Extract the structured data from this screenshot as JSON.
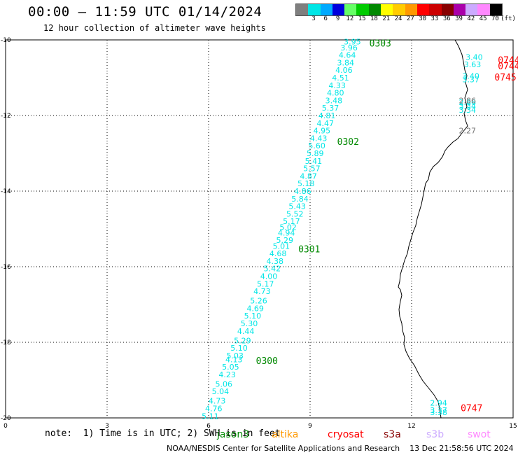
{
  "header": {
    "title": "00:00 – 11:59 UTC 01/14/2024",
    "subtitle": "12 hour collection of altimeter wave heights"
  },
  "legend": {
    "colors": [
      "#7f7f7f",
      "#00e6e6",
      "#00aaff",
      "#0000dd",
      "#66ff66",
      "#00cc00",
      "#008800",
      "#ffff00",
      "#ffcc00",
      "#ff9900",
      "#ff0000",
      "#cc0000",
      "#880000",
      "#aa00aa",
      "#ccaaff",
      "#ff88ff",
      "#000000"
    ],
    "labels": [
      "3",
      "6",
      "9",
      "12",
      "15",
      "18",
      "21",
      "24",
      "27",
      "30",
      "33",
      "36",
      "39",
      "42",
      "45",
      "70"
    ],
    "unit": "(ft)"
  },
  "axes": {
    "x_ticks": [
      "0",
      "3",
      "6",
      "9",
      "12",
      "15"
    ],
    "y_ticks": [
      "-10",
      "-12",
      "-14",
      "-16",
      "-18",
      "-20"
    ]
  },
  "chart_data": {
    "type": "map",
    "xlim": [
      0,
      15
    ],
    "ylim": [
      -20,
      -10
    ],
    "grid": true,
    "tracks": [
      {
        "satellite": "jason3",
        "color": "#00e6e6",
        "label": "0300",
        "label_color": "#008800",
        "label_pos": [
          7.4,
          -18.5
        ],
        "points": [
          [
            6.05,
            -19.95,
            "5.11"
          ],
          [
            6.15,
            -19.75,
            "4.76"
          ],
          [
            6.25,
            -19.55,
            "4.73"
          ],
          [
            6.35,
            -19.3,
            "5.04"
          ],
          [
            6.45,
            -19.1,
            "5.06"
          ],
          [
            6.55,
            -18.85,
            "4.23"
          ],
          [
            6.65,
            -18.65,
            "5.05"
          ],
          [
            6.75,
            -18.45,
            "4.13"
          ],
          [
            6.78,
            -18.35,
            "5.03"
          ],
          [
            6.9,
            -18.15,
            "5.10"
          ],
          [
            7.0,
            -17.95,
            "5.29"
          ],
          [
            7.1,
            -17.7,
            "4.44"
          ],
          [
            7.2,
            -17.5,
            "5.30"
          ],
          [
            7.3,
            -17.3,
            "5.10"
          ],
          [
            7.38,
            -17.1,
            "4.69"
          ],
          [
            7.48,
            -16.9,
            "5.26"
          ],
          [
            7.58,
            -16.65,
            "4.73"
          ],
          [
            7.68,
            -16.45,
            "5.17"
          ],
          [
            7.78,
            -16.25,
            "4.00"
          ],
          [
            7.88,
            -16.05,
            "5.42"
          ],
          [
            7.96,
            -15.85,
            "4.38"
          ]
        ]
      },
      {
        "satellite": "jason3",
        "color": "#00e6e6",
        "label": "0301",
        "label_color": "#008800",
        "label_pos": [
          8.65,
          -15.55
        ],
        "points": [
          [
            8.05,
            -15.65,
            "4.68"
          ],
          [
            8.15,
            -15.45,
            "5.01"
          ],
          [
            8.25,
            -15.3,
            "5.29"
          ],
          [
            8.3,
            -15.1,
            "4.94"
          ],
          [
            8.35,
            -14.95,
            "5.02"
          ],
          [
            8.45,
            -14.8,
            "5.17"
          ],
          [
            8.55,
            -14.6,
            "5.52"
          ],
          [
            8.62,
            -14.4,
            "5.43"
          ],
          [
            8.7,
            -14.2,
            "5.84"
          ],
          [
            8.78,
            -14.0,
            "4.86"
          ],
          [
            8.88,
            -13.8,
            "5.18"
          ],
          [
            8.95,
            -13.6,
            "4.87"
          ],
          [
            9.05,
            -13.4,
            "5.57"
          ],
          [
            9.1,
            -13.2,
            "5.41"
          ],
          [
            9.15,
            -13.0,
            "5.89"
          ],
          [
            9.2,
            -12.8,
            "5.60"
          ],
          [
            9.25,
            -12.6,
            "4.43"
          ]
        ]
      },
      {
        "satellite": "jason3",
        "color": "#00e6e6",
        "label": "0302",
        "label_color": "#008800",
        "label_pos": [
          9.8,
          -12.7
        ],
        "points": [
          [
            9.35,
            -12.4,
            "4.95"
          ],
          [
            9.45,
            -12.2,
            "4.47"
          ],
          [
            9.5,
            -12.0,
            "4.81"
          ],
          [
            9.6,
            -11.8,
            "5.37"
          ],
          [
            9.7,
            -11.6,
            "3.48"
          ],
          [
            9.75,
            -11.4,
            "4.80"
          ],
          [
            9.8,
            -11.2,
            "4.33"
          ],
          [
            9.9,
            -11.0,
            "4.51"
          ],
          [
            10.0,
            -10.8,
            "4.06"
          ],
          [
            10.05,
            -10.6,
            "3.84"
          ],
          [
            10.1,
            -10.4,
            "4.64"
          ],
          [
            10.15,
            -10.2,
            "3.96"
          ],
          [
            10.25,
            -10.05,
            "3.95"
          ]
        ]
      },
      {
        "satellite": "jason3",
        "color": "#00e6e6",
        "label": "0303",
        "label_color": "#008800",
        "label_pos": [
          10.75,
          -10.1
        ],
        "points": []
      },
      {
        "satellite": "cryosat",
        "color": "#00e6e6",
        "label": "0744",
        "label_color": "#ff0000",
        "label_pos": [
          14.55,
          -10.55
        ],
        "points": [
          [
            13.85,
            -10.45,
            "3.40"
          ],
          [
            13.8,
            -10.65,
            "3.63"
          ]
        ]
      },
      {
        "satellite": "cryosat",
        "color": "#00e6e6",
        "label": "0744",
        "label_color": "#ff0000",
        "label_pos": [
          14.55,
          -10.7
        ],
        "points": []
      },
      {
        "satellite": "cryosat",
        "color": "#00e6e6",
        "label": "0745",
        "label_color": "#ff0000",
        "label_pos": [
          14.45,
          -11.0
        ],
        "points": [
          [
            13.75,
            -10.95,
            "3.40"
          ],
          [
            13.75,
            -11.05,
            "3.37"
          ],
          [
            13.65,
            -11.65,
            "2.86"
          ],
          [
            13.65,
            -11.75,
            "3.34"
          ],
          [
            13.65,
            -11.85,
            "3.34"
          ]
        ]
      },
      {
        "satellite": "cryosat",
        "color": "#777777",
        "label": "",
        "label_color": "#777777",
        "label_pos": [
          0,
          0
        ],
        "points": [
          [
            13.65,
            -11.6,
            "2.86"
          ],
          [
            13.65,
            -12.4,
            "2.27"
          ]
        ]
      },
      {
        "satellite": "cryosat",
        "color": "#00e6e6",
        "label": "0747",
        "label_color": "#ff0000",
        "label_pos": [
          13.45,
          -19.75
        ],
        "points": [
          [
            12.8,
            -19.6,
            "2.94"
          ],
          [
            12.8,
            -19.8,
            "3.37"
          ],
          [
            12.8,
            -19.85,
            "3.38"
          ]
        ]
      }
    ]
  },
  "footer": {
    "note": "note:  1) Time is in UTC; 2) SWH is in feet",
    "satellites": [
      {
        "name": "jason3",
        "color": "#008800"
      },
      {
        "name": "altika",
        "color": "#ff9900"
      },
      {
        "name": "cryosat",
        "color": "#ff0000"
      },
      {
        "name": "s3a",
        "color": "#880000"
      },
      {
        "name": "s3b",
        "color": "#ccaaff"
      },
      {
        "name": "swot",
        "color": "#ff88ff"
      }
    ],
    "credit": "NOAA/NESDIS Center for Satellite Applications and Research    13 Dec 21:58:56 UTC 2024"
  }
}
